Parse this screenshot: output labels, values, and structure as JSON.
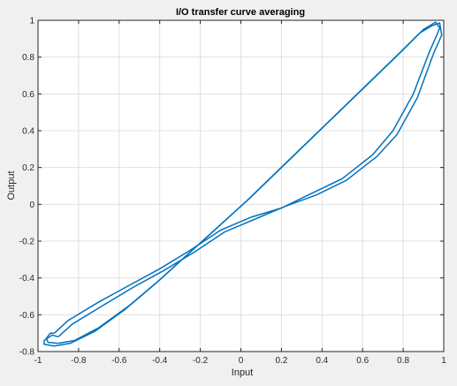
{
  "chart_data": {
    "type": "line",
    "title": "I/O transfer curve averaging",
    "xlabel": "Input",
    "ylabel": "Output",
    "xlim": [
      -1,
      1
    ],
    "ylim": [
      -0.8,
      1
    ],
    "xticks": [
      "-1",
      "-0.8",
      "-0.6",
      "-0.4",
      "-0.2",
      "0",
      "0.2",
      "0.4",
      "0.6",
      "0.8",
      "1"
    ],
    "yticks": [
      "-0.8",
      "-0.6",
      "-0.4",
      "-0.2",
      "0",
      "0.2",
      "0.4",
      "0.6",
      "0.8",
      "1"
    ],
    "grid": true,
    "legend": "none",
    "series_color": "#0072bd",
    "series": [
      {
        "x": [
          -0.92,
          -0.85,
          -0.7,
          -0.55,
          -0.4,
          -0.25,
          -0.1,
          0.05,
          0.2,
          0.35,
          0.5,
          0.65,
          0.75,
          0.85,
          0.93,
          0.97,
          0.98,
          0.96,
          0.9,
          0.8,
          0.65,
          0.5,
          0.35,
          0.2,
          0.05,
          -0.1,
          -0.25,
          -0.4,
          -0.55,
          -0.7,
          -0.82,
          -0.9,
          -0.95,
          -0.96,
          -0.94,
          -0.92
        ],
        "y": [
          -0.7,
          -0.63,
          -0.53,
          -0.44,
          -0.35,
          -0.25,
          -0.14,
          -0.07,
          -0.02,
          0.06,
          0.14,
          0.27,
          0.4,
          0.6,
          0.83,
          0.93,
          0.96,
          0.99,
          0.95,
          0.84,
          0.68,
          0.52,
          0.36,
          0.2,
          0.04,
          -0.11,
          -0.26,
          -0.41,
          -0.55,
          -0.67,
          -0.74,
          -0.755,
          -0.75,
          -0.73,
          -0.7,
          -0.7
        ]
      },
      {
        "x": [
          -0.9,
          -0.83,
          -0.68,
          -0.53,
          -0.38,
          -0.23,
          -0.08,
          0.07,
          0.22,
          0.37,
          0.52,
          0.67,
          0.77,
          0.87,
          0.95,
          0.99,
          0.98,
          0.94,
          0.88,
          0.78,
          0.63,
          0.48,
          0.33,
          0.18,
          0.03,
          -0.12,
          -0.27,
          -0.42,
          -0.57,
          -0.72,
          -0.84,
          -0.92,
          -0.97,
          -0.97,
          -0.93,
          -0.9
        ],
        "y": [
          -0.72,
          -0.65,
          -0.55,
          -0.45,
          -0.36,
          -0.26,
          -0.15,
          -0.08,
          -0.01,
          0.05,
          0.13,
          0.26,
          0.38,
          0.58,
          0.82,
          0.92,
          0.985,
          0.97,
          0.93,
          0.82,
          0.66,
          0.5,
          0.34,
          0.18,
          0.02,
          -0.13,
          -0.28,
          -0.43,
          -0.57,
          -0.69,
          -0.755,
          -0.77,
          -0.76,
          -0.74,
          -0.71,
          -0.72
        ]
      }
    ]
  }
}
